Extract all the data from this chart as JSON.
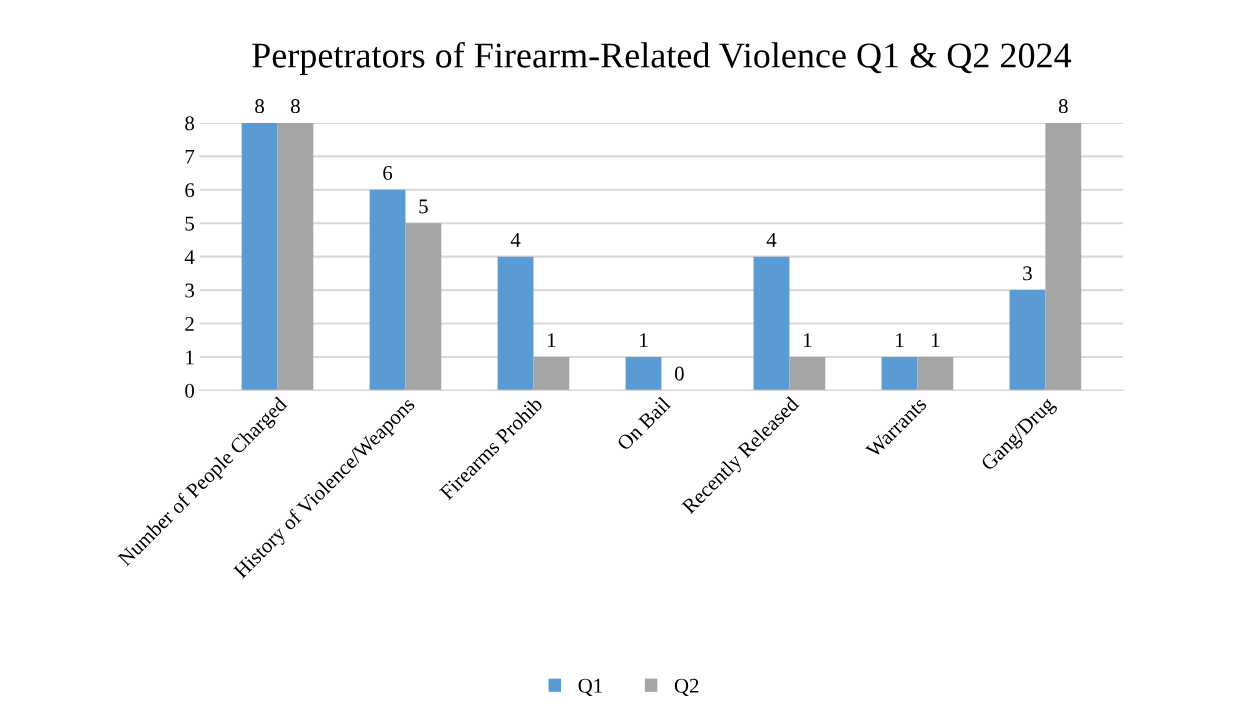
{
  "chart_data": {
    "type": "bar",
    "title": "Perpetrators of Firearm-Related Violence Q1 & Q2 2024",
    "categories": [
      "Number of People Charged",
      "History of Violence/Weapons",
      "Firearms Prohib",
      "On Bail",
      "Recently Released",
      "Warrants",
      "Gang/Drug"
    ],
    "series": [
      {
        "name": "Q1",
        "color": "#5b9bd5",
        "values": [
          8,
          6,
          4,
          1,
          4,
          1,
          3
        ]
      },
      {
        "name": "Q2",
        "color": "#a5a5a5",
        "values": [
          8,
          5,
          1,
          0,
          1,
          1,
          8
        ]
      }
    ],
    "ylim": [
      0,
      8
    ],
    "yticks": [
      0,
      1,
      2,
      3,
      4,
      5,
      6,
      7,
      8
    ],
    "grid": "y",
    "legend": "bottom",
    "data_labels": true
  }
}
